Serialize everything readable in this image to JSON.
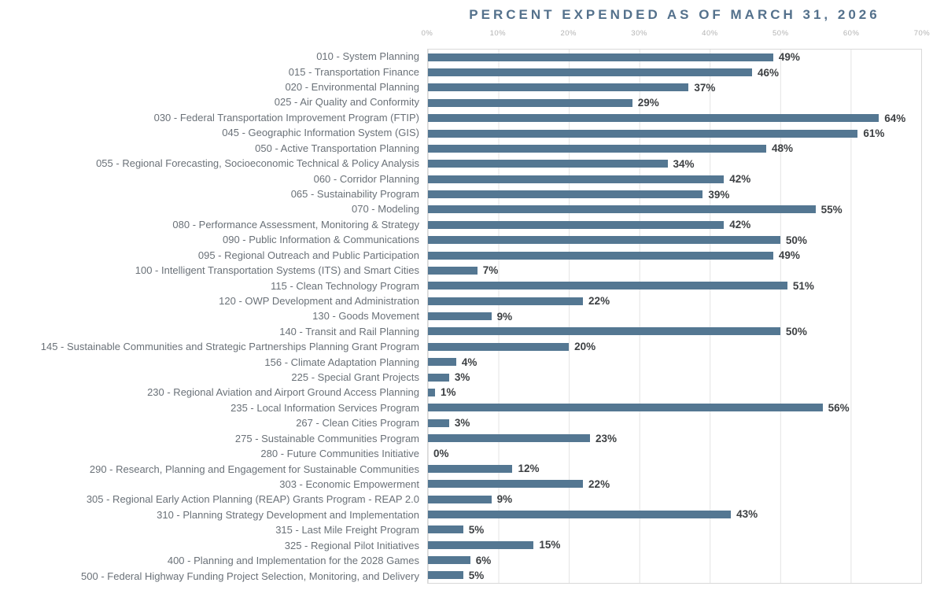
{
  "title": "PERCENT EXPENDED AS OF MARCH 31, 2026",
  "colors": {
    "bar": "#547792",
    "title": "#54718c",
    "gridline": "#e3e3e3",
    "plot_border": "#d9d9d9",
    "tick_label": "#b3b3b3",
    "category_label": "#6a7178",
    "value_label": "#3d4043"
  },
  "chart_data": {
    "type": "bar",
    "orientation": "horizontal",
    "title": "PERCENT EXPENDED AS OF MARCH 31, 2026",
    "xlabel": "",
    "ylabel": "",
    "xlim": [
      0,
      70
    ],
    "x_ticks": [
      "0%",
      "10%",
      "20%",
      "30%",
      "40%",
      "50%",
      "60%",
      "70%"
    ],
    "grid": true,
    "legend": false,
    "categories": [
      "010 - System Planning",
      "015 - Transportation Finance",
      "020 - Environmental Planning",
      "025 - Air Quality and Conformity",
      "030 - Federal Transportation Improvement Program (FTIP)",
      "045 - Geographic Information System (GIS)",
      "050 - Active Transportation Planning",
      "055 - Regional Forecasting, Socioeconomic Technical & Policy Analysis",
      "060 - Corridor Planning",
      "065 - Sustainability Program",
      "070 - Modeling",
      "080 - Performance Assessment, Monitoring & Strategy",
      "090 - Public Information & Communications",
      "095 - Regional Outreach and Public Participation",
      "100 - Intelligent Transportation Systems (ITS) and Smart Cities",
      "115 - Clean Technology Program",
      "120 - OWP Development and Administration",
      "130 - Goods Movement",
      "140 - Transit and Rail Planning",
      "145 - Sustainable Communities and Strategic Partnerships Planning Grant Program",
      "156 - Climate Adaptation Planning",
      "225 - Special Grant Projects",
      "230 - Regional Aviation and Airport Ground Access Planning",
      "235 - Local Information Services Program",
      "267 - Clean Cities Program",
      "275 - Sustainable Communities Program",
      "280 - Future Communities Initiative",
      "290 - Research, Planning and Engagement for Sustainable Communities",
      "303 - Economic Empowerment",
      "305 - Regional Early Action Planning (REAP) Grants Program - REAP 2.0",
      "310 - Planning Strategy Development and Implementation",
      "315 - Last Mile Freight Program",
      "325 - Regional Pilot Initiatives",
      "400 - Planning and Implementation for the 2028 Games",
      "500 - Federal Highway Funding Project Selection, Monitoring, and Delivery"
    ],
    "values": [
      49,
      46,
      37,
      29,
      64,
      61,
      48,
      34,
      42,
      39,
      55,
      42,
      50,
      49,
      7,
      51,
      22,
      9,
      50,
      20,
      4,
      3,
      1,
      56,
      3,
      23,
      0,
      12,
      22,
      9,
      43,
      5,
      15,
      6,
      5
    ],
    "value_labels": [
      "49%",
      "46%",
      "37%",
      "29%",
      "64%",
      "61%",
      "48%",
      "34%",
      "42%",
      "39%",
      "55%",
      "42%",
      "50%",
      "49%",
      "7%",
      "51%",
      "22%",
      "9%",
      "50%",
      "20%",
      "4%",
      "3%",
      "1%",
      "56%",
      "3%",
      "23%",
      "0%",
      "12%",
      "22%",
      "9%",
      "43%",
      "5%",
      "15%",
      "6%",
      "5%"
    ]
  }
}
